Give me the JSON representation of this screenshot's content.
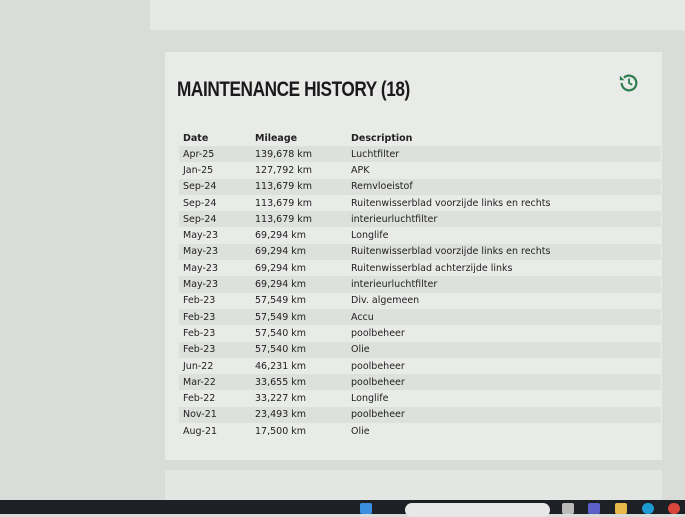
{
  "section": {
    "title": "MAINTENANCE HISTORY (18)",
    "icon": "history-icon",
    "accent": "#2e7d4f"
  },
  "table": {
    "headers": [
      "Date",
      "Mileage",
      "Description"
    ],
    "rows": [
      [
        "Apr-25",
        "139,678 km",
        "Luchtfilter"
      ],
      [
        "Jan-25",
        "127,792 km",
        "APK"
      ],
      [
        "Sep-24",
        "113,679 km",
        "Remvloeistof"
      ],
      [
        "Sep-24",
        "113,679 km",
        "Ruitenwisserblad voorzijde links en rechts"
      ],
      [
        "Sep-24",
        "113,679 km",
        "interieurluchtfilter"
      ],
      [
        "May-23",
        "69,294 km",
        "Longlife"
      ],
      [
        "May-23",
        "69,294 km",
        "Ruitenwisserblad voorzijde links en rechts"
      ],
      [
        "May-23",
        "69,294 km",
        "Ruitenwisserblad achterzijde links"
      ],
      [
        "May-23",
        "69,294 km",
        "interieurluchtfilter"
      ],
      [
        "Feb-23",
        "57,549 km",
        "Div. algemeen"
      ],
      [
        "Feb-23",
        "57,549 km",
        "Accu"
      ],
      [
        "Feb-23",
        "57,540 km",
        "poolbeheer"
      ],
      [
        "Feb-23",
        "57,540 km",
        "Olie"
      ],
      [
        "Jun-22",
        "46,231 km",
        "poolbeheer"
      ],
      [
        "Mar-22",
        "33,655 km",
        "poolbeheer"
      ],
      [
        "Feb-22",
        "33,227 km",
        "Longlife"
      ],
      [
        "Nov-21",
        "23,493 km",
        "poolbeheer"
      ],
      [
        "Aug-21",
        "17,500 km",
        "Olie"
      ]
    ]
  },
  "taskbar": {
    "icons": [
      "windows-icon",
      "search-icon",
      "file-icon",
      "teams-icon",
      "folder-icon",
      "edge-icon",
      "chrome-icon"
    ]
  }
}
